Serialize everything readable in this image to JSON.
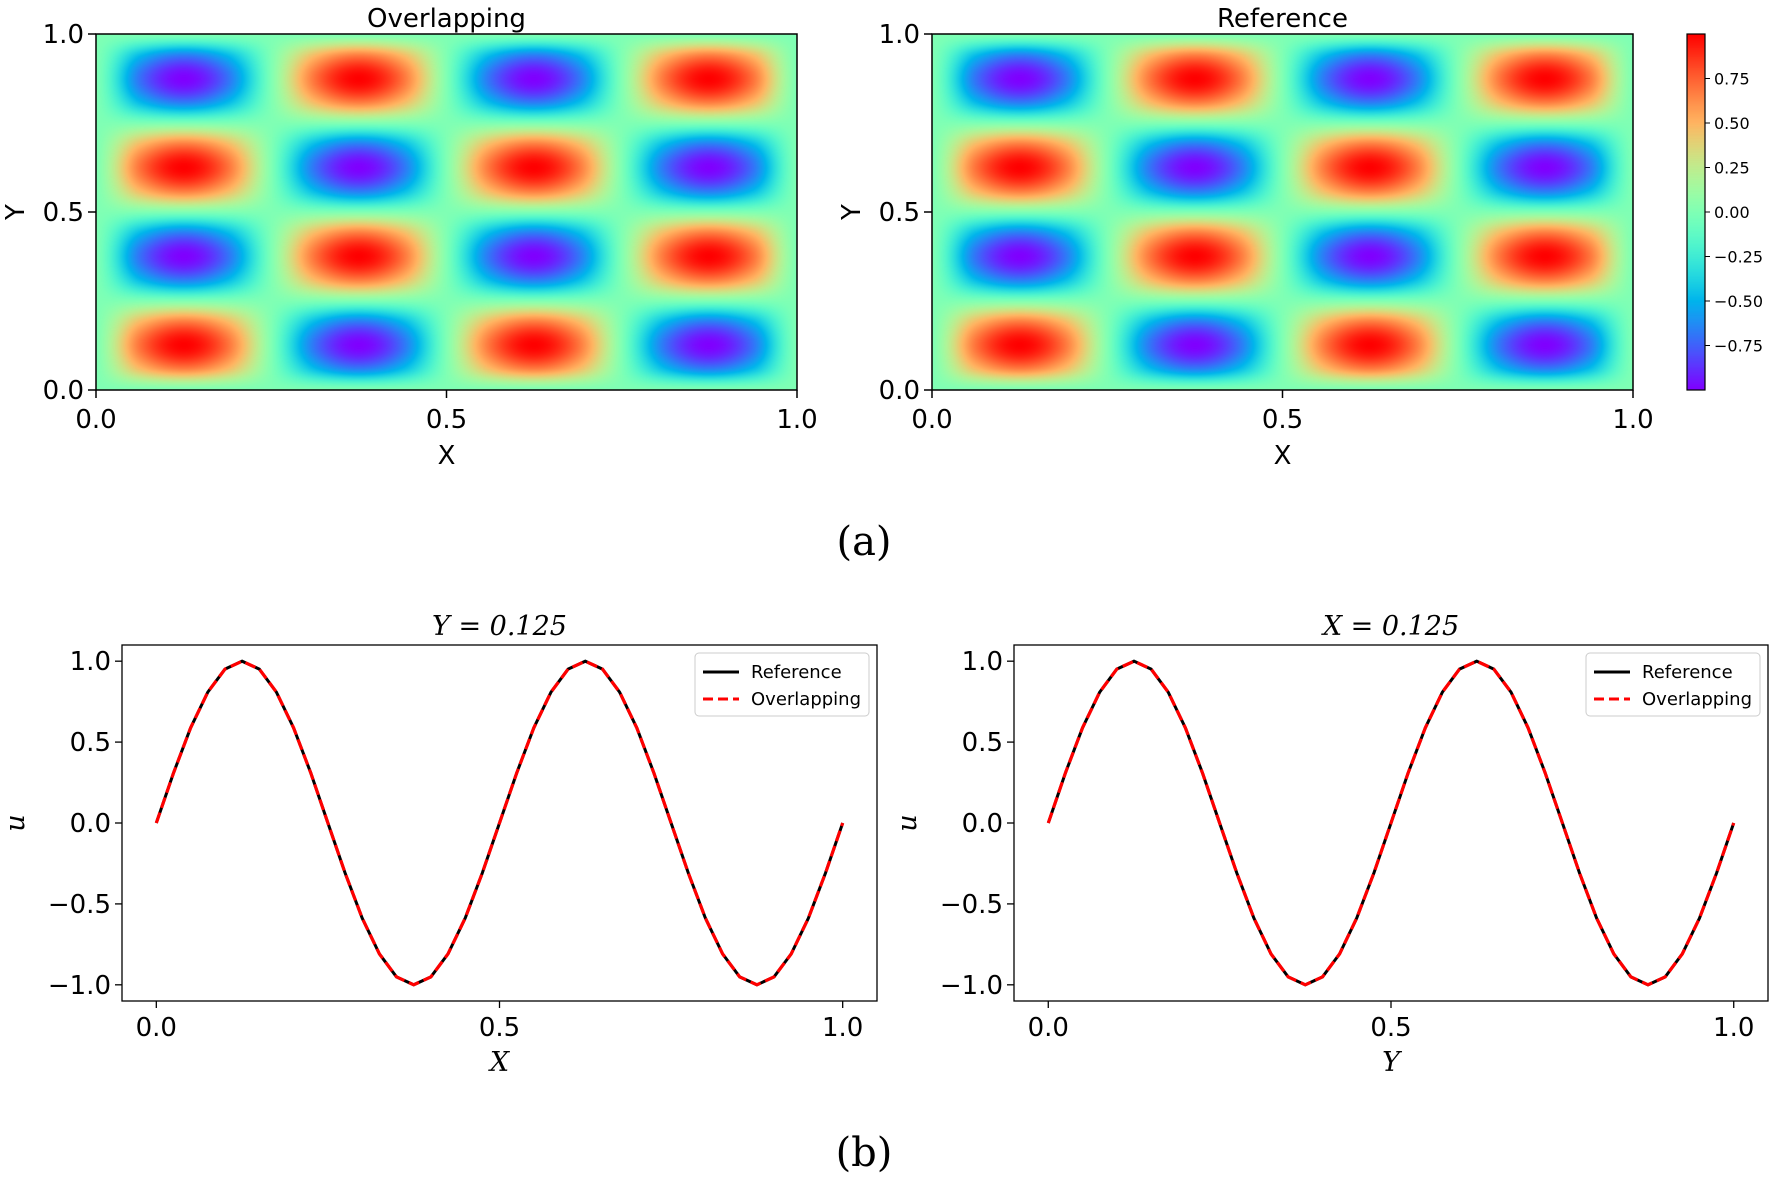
{
  "panel_labels": {
    "a": "(a)",
    "b": "(b)"
  },
  "colorbar": {
    "colormap": "rainbow",
    "range": [
      -1,
      1
    ],
    "ticks": [
      0.75,
      0.5,
      0.25,
      0.0,
      -0.25,
      -0.5,
      -0.75
    ],
    "tick_labels": [
      "0.75",
      "0.50",
      "0.25",
      "0.00",
      "−0.25",
      "−0.50",
      "−0.75"
    ]
  },
  "chart_data": [
    {
      "type": "heatmap",
      "title": "Overlapping",
      "xlabel": "X",
      "ylabel": "Y",
      "xlim": [
        0,
        1
      ],
      "ylim": [
        0,
        1
      ],
      "xticks": [
        "0.0",
        "0.5",
        "1.0"
      ],
      "yticks": [
        "0.0",
        "0.5",
        "1.0"
      ],
      "grid_step": 0.0625,
      "z": [
        [
          0,
          0,
          0,
          0,
          0,
          0,
          0,
          0,
          0,
          0,
          0,
          0,
          0,
          0,
          0,
          0,
          0
        ],
        [
          0,
          0.5,
          0.71,
          0.5,
          0,
          -0.5,
          -0.71,
          -0.5,
          0,
          0.5,
          0.71,
          0.5,
          0,
          -0.5,
          -0.71,
          -0.5,
          0
        ],
        [
          0,
          0.71,
          1,
          0.71,
          0,
          -0.71,
          -1,
          -0.71,
          0,
          0.71,
          1,
          0.71,
          0,
          -0.71,
          -1,
          -0.71,
          0
        ],
        [
          0,
          0.5,
          0.71,
          0.5,
          0,
          -0.5,
          -0.71,
          -0.5,
          0,
          0.5,
          0.71,
          0.5,
          0,
          -0.5,
          -0.71,
          -0.5,
          0
        ],
        [
          0,
          0,
          0,
          0,
          0,
          0,
          0,
          0,
          0,
          0,
          0,
          0,
          0,
          0,
          0,
          0,
          0
        ],
        [
          0,
          -0.5,
          -0.71,
          -0.5,
          0,
          0.5,
          0.71,
          0.5,
          0,
          -0.5,
          -0.71,
          -0.5,
          0,
          0.5,
          0.71,
          0.5,
          0
        ],
        [
          0,
          -0.71,
          -1,
          -0.71,
          0,
          0.71,
          1,
          0.71,
          0,
          -0.71,
          -1,
          -0.71,
          0,
          0.71,
          1,
          0.71,
          0
        ],
        [
          0,
          -0.5,
          -0.71,
          -0.5,
          0,
          0.5,
          0.71,
          0.5,
          0,
          -0.5,
          -0.71,
          -0.5,
          0,
          0.5,
          0.71,
          0.5,
          0
        ],
        [
          0,
          0,
          0,
          0,
          0,
          0,
          0,
          0,
          0,
          0,
          0,
          0,
          0,
          0,
          0,
          0,
          0
        ],
        [
          0,
          0.5,
          0.71,
          0.5,
          0,
          -0.5,
          -0.71,
          -0.5,
          0,
          0.5,
          0.71,
          0.5,
          0,
          -0.5,
          -0.71,
          -0.5,
          0
        ],
        [
          0,
          0.71,
          1,
          0.71,
          0,
          -0.71,
          -1,
          -0.71,
          0,
          0.71,
          1,
          0.71,
          0,
          -0.71,
          -1,
          -0.71,
          0
        ],
        [
          0,
          0.5,
          0.71,
          0.5,
          0,
          -0.5,
          -0.71,
          -0.5,
          0,
          0.5,
          0.71,
          0.5,
          0,
          -0.5,
          -0.71,
          -0.5,
          0
        ],
        [
          0,
          0,
          0,
          0,
          0,
          0,
          0,
          0,
          0,
          0,
          0,
          0,
          0,
          0,
          0,
          0,
          0
        ],
        [
          0,
          -0.5,
          -0.71,
          -0.5,
          0,
          0.5,
          0.71,
          0.5,
          0,
          -0.5,
          -0.71,
          -0.5,
          0,
          0.5,
          0.71,
          0.5,
          0
        ],
        [
          0,
          -0.71,
          -1,
          -0.71,
          0,
          0.71,
          1,
          0.71,
          0,
          -0.71,
          -1,
          -0.71,
          0,
          0.71,
          1,
          0.71,
          0
        ],
        [
          0,
          -0.5,
          -0.71,
          -0.5,
          0,
          0.5,
          0.71,
          0.5,
          0,
          -0.5,
          -0.71,
          -0.5,
          0,
          0.5,
          0.71,
          0.5,
          0
        ],
        [
          0,
          0,
          0,
          0,
          0,
          0,
          0,
          0,
          0,
          0,
          0,
          0,
          0,
          0,
          0,
          0,
          0
        ]
      ]
    },
    {
      "type": "heatmap",
      "title": "Reference",
      "xlabel": "X",
      "ylabel": "Y",
      "xlim": [
        0,
        1
      ],
      "ylim": [
        0,
        1
      ],
      "xticks": [
        "0.0",
        "0.5",
        "1.0"
      ],
      "yticks": [
        "0.0",
        "0.5",
        "1.0"
      ],
      "grid_step": 0.0625,
      "z": [
        [
          0,
          0,
          0,
          0,
          0,
          0,
          0,
          0,
          0,
          0,
          0,
          0,
          0,
          0,
          0,
          0,
          0
        ],
        [
          0,
          0.5,
          0.71,
          0.5,
          0,
          -0.5,
          -0.71,
          -0.5,
          0,
          0.5,
          0.71,
          0.5,
          0,
          -0.5,
          -0.71,
          -0.5,
          0
        ],
        [
          0,
          0.71,
          1,
          0.71,
          0,
          -0.71,
          -1,
          -0.71,
          0,
          0.71,
          1,
          0.71,
          0,
          -0.71,
          -1,
          -0.71,
          0
        ],
        [
          0,
          0.5,
          0.71,
          0.5,
          0,
          -0.5,
          -0.71,
          -0.5,
          0,
          0.5,
          0.71,
          0.5,
          0,
          -0.5,
          -0.71,
          -0.5,
          0
        ],
        [
          0,
          0,
          0,
          0,
          0,
          0,
          0,
          0,
          0,
          0,
          0,
          0,
          0,
          0,
          0,
          0,
          0
        ],
        [
          0,
          -0.5,
          -0.71,
          -0.5,
          0,
          0.5,
          0.71,
          0.5,
          0,
          -0.5,
          -0.71,
          -0.5,
          0,
          0.5,
          0.71,
          0.5,
          0
        ],
        [
          0,
          -0.71,
          -1,
          -0.71,
          0,
          0.71,
          1,
          0.71,
          0,
          -0.71,
          -1,
          -0.71,
          0,
          0.71,
          1,
          0.71,
          0
        ],
        [
          0,
          -0.5,
          -0.71,
          -0.5,
          0,
          0.5,
          0.71,
          0.5,
          0,
          -0.5,
          -0.71,
          -0.5,
          0,
          0.5,
          0.71,
          0.5,
          0
        ],
        [
          0,
          0,
          0,
          0,
          0,
          0,
          0,
          0,
          0,
          0,
          0,
          0,
          0,
          0,
          0,
          0,
          0
        ],
        [
          0,
          0.5,
          0.71,
          0.5,
          0,
          -0.5,
          -0.71,
          -0.5,
          0,
          0.5,
          0.71,
          0.5,
          0,
          -0.5,
          -0.71,
          -0.5,
          0
        ],
        [
          0,
          0.71,
          1,
          0.71,
          0,
          -0.71,
          -1,
          -0.71,
          0,
          0.71,
          1,
          0.71,
          0,
          -0.71,
          -1,
          -0.71,
          0
        ],
        [
          0,
          0.5,
          0.71,
          0.5,
          0,
          -0.5,
          -0.71,
          -0.5,
          0,
          0.5,
          0.71,
          0.5,
          0,
          -0.5,
          -0.71,
          -0.5,
          0
        ],
        [
          0,
          0,
          0,
          0,
          0,
          0,
          0,
          0,
          0,
          0,
          0,
          0,
          0,
          0,
          0,
          0,
          0
        ],
        [
          0,
          -0.5,
          -0.71,
          -0.5,
          0,
          0.5,
          0.71,
          0.5,
          0,
          -0.5,
          -0.71,
          -0.5,
          0,
          0.5,
          0.71,
          0.5,
          0
        ],
        [
          0,
          -0.71,
          -1,
          -0.71,
          0,
          0.71,
          1,
          0.71,
          0,
          -0.71,
          -1,
          -0.71,
          0,
          0.71,
          1,
          0.71,
          0
        ],
        [
          0,
          -0.5,
          -0.71,
          -0.5,
          0,
          0.5,
          0.71,
          0.5,
          0,
          -0.5,
          -0.71,
          -0.5,
          0,
          0.5,
          0.71,
          0.5,
          0
        ],
        [
          0,
          0,
          0,
          0,
          0,
          0,
          0,
          0,
          0,
          0,
          0,
          0,
          0,
          0,
          0,
          0,
          0
        ]
      ]
    },
    {
      "type": "line",
      "title": "Y = 0.125",
      "xlabel": "X",
      "ylabel": "u",
      "xlim": [
        -0.05,
        1.05
      ],
      "ylim": [
        -1.1,
        1.1
      ],
      "xticks": [
        "0.0",
        "0.5",
        "1.0"
      ],
      "yticks": [
        "1.0",
        "0.5",
        "0.0",
        "−0.5",
        "−1.0"
      ],
      "legend_position": "top-right",
      "x": [
        0,
        0.025,
        0.05,
        0.075,
        0.1,
        0.125,
        0.15,
        0.175,
        0.2,
        0.225,
        0.25,
        0.275,
        0.3,
        0.325,
        0.35,
        0.375,
        0.4,
        0.425,
        0.45,
        0.475,
        0.5,
        0.525,
        0.55,
        0.575,
        0.6,
        0.625,
        0.65,
        0.675,
        0.7,
        0.725,
        0.75,
        0.775,
        0.8,
        0.825,
        0.85,
        0.875,
        0.9,
        0.925,
        0.95,
        0.975,
        1
      ],
      "series": [
        {
          "name": "Reference",
          "color": "#000000",
          "style": "solid",
          "values": [
            0,
            0.309,
            0.588,
            0.809,
            0.951,
            1,
            0.951,
            0.809,
            0.588,
            0.309,
            0,
            -0.309,
            -0.588,
            -0.809,
            -0.951,
            -1,
            -0.951,
            -0.809,
            -0.588,
            -0.309,
            0,
            0.309,
            0.588,
            0.809,
            0.951,
            1,
            0.951,
            0.809,
            0.588,
            0.309,
            0,
            -0.309,
            -0.588,
            -0.809,
            -0.951,
            -1,
            -0.951,
            -0.809,
            -0.588,
            -0.309,
            0
          ]
        },
        {
          "name": "Overlapping",
          "color": "#ff0000",
          "style": "dashed",
          "values": [
            0,
            0.309,
            0.588,
            0.809,
            0.951,
            1,
            0.951,
            0.809,
            0.588,
            0.309,
            0,
            -0.309,
            -0.588,
            -0.809,
            -0.951,
            -1,
            -0.951,
            -0.809,
            -0.588,
            -0.309,
            0,
            0.309,
            0.588,
            0.809,
            0.951,
            1,
            0.951,
            0.809,
            0.588,
            0.309,
            0,
            -0.309,
            -0.588,
            -0.809,
            -0.951,
            -1,
            -0.951,
            -0.809,
            -0.588,
            -0.309,
            0
          ]
        }
      ]
    },
    {
      "type": "line",
      "title": "X = 0.125",
      "xlabel": "Y",
      "ylabel": "u",
      "xlim": [
        -0.05,
        1.05
      ],
      "ylim": [
        -1.1,
        1.1
      ],
      "xticks": [
        "0.0",
        "0.5",
        "1.0"
      ],
      "yticks": [
        "1.0",
        "0.5",
        "0.0",
        "−0.5",
        "−1.0"
      ],
      "legend_position": "top-right",
      "x": [
        0,
        0.025,
        0.05,
        0.075,
        0.1,
        0.125,
        0.15,
        0.175,
        0.2,
        0.225,
        0.25,
        0.275,
        0.3,
        0.325,
        0.35,
        0.375,
        0.4,
        0.425,
        0.45,
        0.475,
        0.5,
        0.525,
        0.55,
        0.575,
        0.6,
        0.625,
        0.65,
        0.675,
        0.7,
        0.725,
        0.75,
        0.775,
        0.8,
        0.825,
        0.85,
        0.875,
        0.9,
        0.925,
        0.95,
        0.975,
        1
      ],
      "series": [
        {
          "name": "Reference",
          "color": "#000000",
          "style": "solid",
          "values": [
            0,
            0.309,
            0.588,
            0.809,
            0.951,
            1,
            0.951,
            0.809,
            0.588,
            0.309,
            0,
            -0.309,
            -0.588,
            -0.809,
            -0.951,
            -1,
            -0.951,
            -0.809,
            -0.588,
            -0.309,
            0,
            0.309,
            0.588,
            0.809,
            0.951,
            1,
            0.951,
            0.809,
            0.588,
            0.309,
            0,
            -0.309,
            -0.588,
            -0.809,
            -0.951,
            -1,
            -0.951,
            -0.809,
            -0.588,
            -0.309,
            0
          ]
        },
        {
          "name": "Overlapping",
          "color": "#ff0000",
          "style": "dashed",
          "values": [
            0,
            0.309,
            0.588,
            0.809,
            0.951,
            1,
            0.951,
            0.809,
            0.588,
            0.309,
            0,
            -0.309,
            -0.588,
            -0.809,
            -0.951,
            -1,
            -0.951,
            -0.809,
            -0.588,
            -0.309,
            0,
            0.309,
            0.588,
            0.809,
            0.951,
            1,
            0.951,
            0.809,
            0.588,
            0.309,
            0,
            -0.309,
            -0.588,
            -0.809,
            -0.951,
            -1,
            -0.951,
            -0.809,
            -0.588,
            -0.309,
            0
          ]
        }
      ]
    }
  ]
}
